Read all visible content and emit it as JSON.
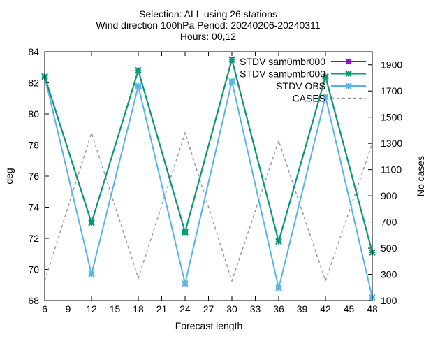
{
  "chart_data": {
    "type": "line",
    "title_lines": [
      "Selection: ALL using    26 stations",
      "Wind direction 100hPa   Period: 20240206-20240311",
      "Hours: 00,12"
    ],
    "xlabel": "Forecast length",
    "ylabel": "deg",
    "y2label": "No cases",
    "xlim": [
      6,
      48
    ],
    "ylim": [
      68,
      84
    ],
    "y2lim": [
      100,
      2000
    ],
    "x_ticks": [
      6,
      9,
      12,
      15,
      18,
      21,
      24,
      27,
      30,
      33,
      36,
      39,
      42,
      45,
      48
    ],
    "y_ticks": [
      68,
      70,
      72,
      74,
      76,
      78,
      80,
      82,
      84
    ],
    "y2_ticks": [
      100,
      300,
      500,
      700,
      900,
      1100,
      1300,
      1500,
      1700,
      1900
    ],
    "grid": false,
    "legend_position": "top-right",
    "x": [
      6,
      12,
      18,
      24,
      30,
      36,
      42,
      48
    ],
    "series": [
      {
        "name": "STDV sam0mbr000",
        "axis": "y",
        "color": "#9400d3",
        "marker": "x",
        "values": [
          82.4,
          73.0,
          82.8,
          72.4,
          83.5,
          71.8,
          82.4,
          71.1
        ]
      },
      {
        "name": "STDV sam5mbr000",
        "axis": "y",
        "color": "#009e73",
        "marker": "x",
        "values": [
          82.4,
          73.0,
          82.8,
          72.4,
          83.5,
          71.8,
          82.4,
          71.1
        ]
      },
      {
        "name": "STDV OBS",
        "axis": "y",
        "color": "#56b4e9",
        "marker": "x",
        "values": [
          82.4,
          69.7,
          81.8,
          69.1,
          82.1,
          68.8,
          81.1,
          68.2
        ]
      },
      {
        "name": "CASES",
        "axis": "y2",
        "color": "#999999",
        "dashed": true,
        "values": [
          250,
          1380,
          270,
          1380,
          250,
          1320,
          250,
          1300
        ]
      }
    ]
  }
}
